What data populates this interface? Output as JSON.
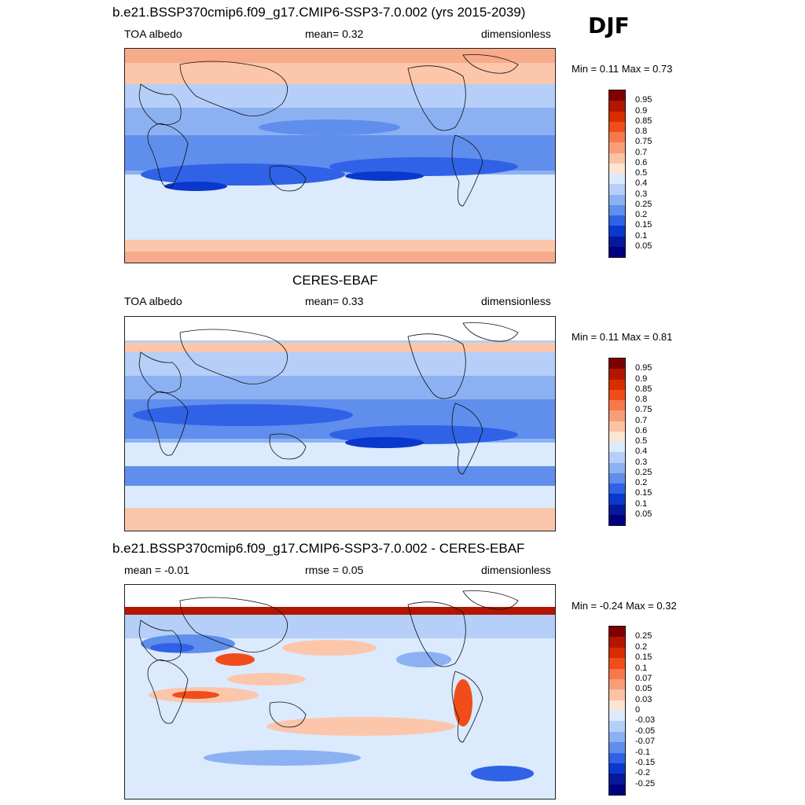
{
  "header": {
    "season": "DJF"
  },
  "panels": [
    {
      "title": "b.e21.BSSP370cmip6.f09_g17.CMIP6-SSP3-7.0.002 (yrs 2015-2039)",
      "left_label": "TOA albedo",
      "center_label": "mean=   0.32",
      "right_label": "dimensionless",
      "minmax": "Min =   0.11 Max =   0.73",
      "colorbar_labels": [
        "0.95",
        "0.9",
        "0.85",
        "0.8",
        "0.75",
        "0.7",
        "0.6",
        "0.5",
        "0.4",
        "0.3",
        "0.25",
        "0.2",
        "0.15",
        "0.1",
        "0.05"
      ]
    },
    {
      "title": "CERES-EBAF",
      "left_label": "TOA albedo",
      "center_label": "mean=   0.33",
      "right_label": "dimensionless",
      "minmax": "Min =   0.11 Max =   0.81",
      "colorbar_labels": [
        "0.95",
        "0.9",
        "0.85",
        "0.8",
        "0.75",
        "0.7",
        "0.6",
        "0.5",
        "0.4",
        "0.3",
        "0.25",
        "0.2",
        "0.15",
        "0.1",
        "0.05"
      ]
    },
    {
      "title": "b.e21.BSSP370cmip6.f09_g17.CMIP6-SSP3-7.0.002 - CERES-EBAF",
      "left_label": "mean =  -0.01",
      "center_label": "rmse =   0.05",
      "right_label": "dimensionless",
      "minmax": "Min =  -0.24 Max =   0.32",
      "colorbar_labels": [
        "0.25",
        "0.2",
        "0.15",
        "0.1",
        "0.07",
        "0.05",
        "0.03",
        "0",
        "-0.03",
        "-0.05",
        "-0.07",
        "-0.1",
        "-0.15",
        "-0.2",
        "-0.25"
      ]
    }
  ],
  "colors": {
    "scale": [
      "#7f0000",
      "#b31600",
      "#d92d00",
      "#f04d1a",
      "#f7784a",
      "#f99d78",
      "#fcc2a4",
      "#fde4d3",
      "#dbeafc",
      "#b5cff8",
      "#8cb1f3",
      "#5f8eec",
      "#2f62e6",
      "#0a37cc",
      "#05199a",
      "#000080"
    ],
    "map_colors_top": {
      "polar": "#f8ab8a",
      "subpolar": "#fcc6ab",
      "midlat": "#dbeafc",
      "trop_light": "#b5cff8",
      "trop_mid": "#5f8eec",
      "trop_dark": "#2f62e6",
      "trop_darkest": "#0a37cc"
    },
    "map_colors_diff": {
      "base": "#dbeafc",
      "warm": "#fcc6ab",
      "hot": "#f04d1a",
      "cool": "#8cb1f3",
      "cold": "#2f62e6",
      "band": "#b31600"
    }
  }
}
